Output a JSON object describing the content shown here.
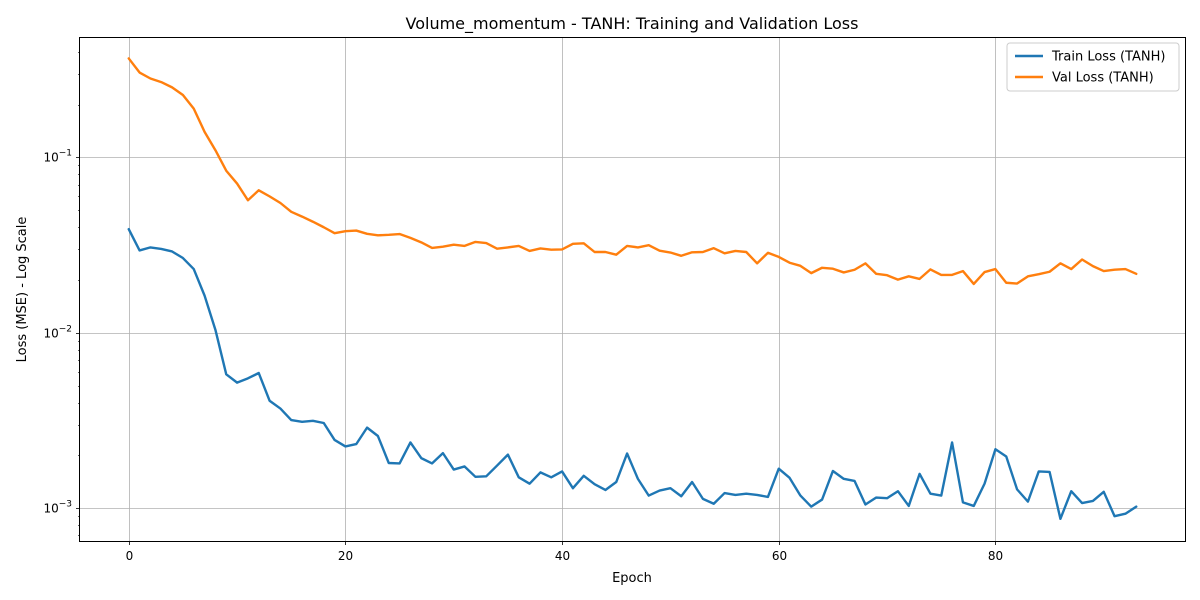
{
  "chart_data": {
    "type": "line",
    "title": "Volume_momentum - TANH: Training and Validation Loss",
    "xlabel": "Epoch",
    "ylabel": "Loss (MSE) - Log Scale",
    "yscale": "log",
    "xlim": [
      -4.5,
      97.5
    ],
    "ylim": [
      0.00065,
      0.48
    ],
    "x_ticks": [
      0,
      20,
      40,
      60,
      80
    ],
    "y_ticks": [
      {
        "value": 0.001,
        "base": "10",
        "exp": "−3"
      },
      {
        "value": 0.01,
        "base": "10",
        "exp": "−2"
      },
      {
        "value": 0.1,
        "base": "10",
        "exp": "−1"
      }
    ],
    "grid": true,
    "legend_position": "top-right",
    "series": [
      {
        "name": "Train Loss (TANH)",
        "color": "#1f77b4",
        "values": [
          0.039,
          0.0295,
          0.0307,
          0.0301,
          0.0291,
          0.0267,
          0.0231,
          0.0163,
          0.0104,
          0.0058,
          0.0052,
          0.0055,
          0.0059,
          0.0041,
          0.0037,
          0.00318,
          0.00311,
          0.00315,
          0.00306,
          0.00245,
          0.00225,
          0.00232,
          0.00288,
          0.00258,
          0.00181,
          0.0018,
          0.00237,
          0.00193,
          0.0018,
          0.00206,
          0.00166,
          0.00173,
          0.00151,
          0.00152,
          0.00175,
          0.00202,
          0.0015,
          0.00138,
          0.0016,
          0.0015,
          0.00162,
          0.0013,
          0.00153,
          0.00137,
          0.00127,
          0.00141,
          0.00205,
          0.00147,
          0.00118,
          0.00126,
          0.0013,
          0.00117,
          0.00141,
          0.00113,
          0.00106,
          0.00122,
          0.00119,
          0.00121,
          0.00119,
          0.00116,
          0.00168,
          0.00149,
          0.00118,
          0.00102,
          0.00112,
          0.00163,
          0.00147,
          0.00143,
          0.00105,
          0.00115,
          0.00114,
          0.00125,
          0.00103,
          0.00157,
          0.00121,
          0.00118,
          0.00237,
          0.00108,
          0.00103,
          0.00138,
          0.00217,
          0.00197,
          0.00128,
          0.00109,
          0.00162,
          0.00161,
          0.00087,
          0.00125,
          0.00107,
          0.0011,
          0.00124,
          0.0009,
          0.00093,
          0.00102
        ]
      },
      {
        "name": "Val Loss (TANH)",
        "color": "#ff7f0e",
        "values": [
          0.367,
          0.305,
          0.282,
          0.269,
          0.251,
          0.227,
          0.19,
          0.14,
          0.11,
          0.084,
          0.071,
          0.057,
          0.065,
          0.06,
          0.055,
          0.049,
          0.046,
          0.043,
          0.04,
          0.037,
          0.038,
          0.0383,
          0.0367,
          0.036,
          0.0362,
          0.0366,
          0.0348,
          0.0328,
          0.0305,
          0.031,
          0.0318,
          0.0313,
          0.033,
          0.0325,
          0.0302,
          0.0307,
          0.0313,
          0.0293,
          0.0303,
          0.0298,
          0.0299,
          0.0322,
          0.0324,
          0.0289,
          0.0289,
          0.0279,
          0.0313,
          0.0307,
          0.0316,
          0.0294,
          0.0287,
          0.0275,
          0.0288,
          0.0289,
          0.0304,
          0.0284,
          0.0293,
          0.0289,
          0.0249,
          0.0286,
          0.0271,
          0.0251,
          0.0241,
          0.0219,
          0.0235,
          0.0232,
          0.0221,
          0.0229,
          0.0249,
          0.0217,
          0.0213,
          0.0201,
          0.021,
          0.0203,
          0.023,
          0.0214,
          0.0214,
          0.0225,
          0.019,
          0.0222,
          0.0231,
          0.0193,
          0.0191,
          0.021,
          0.0216,
          0.0223,
          0.0249,
          0.0231,
          0.0262,
          0.024,
          0.0225,
          0.0229,
          0.0231,
          0.0217
        ]
      }
    ]
  }
}
